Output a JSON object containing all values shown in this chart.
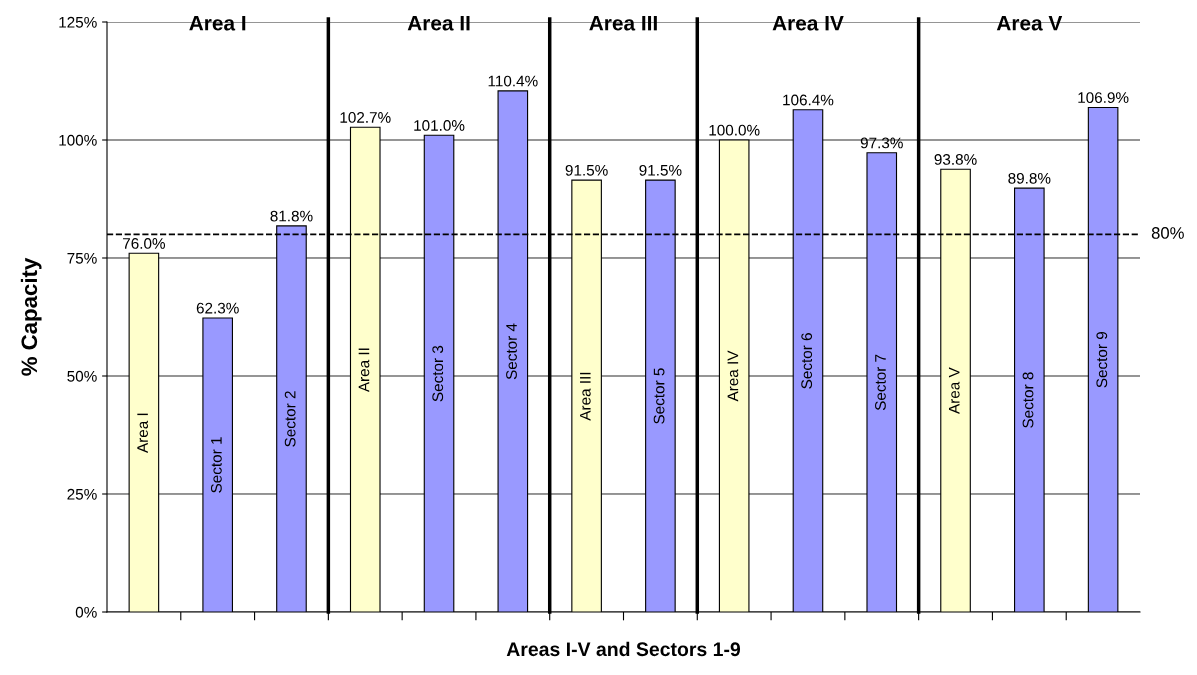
{
  "chart_data": {
    "type": "bar",
    "xlabel": "Areas I-V and Sectors 1-9",
    "ylabel": "% Capacity",
    "categories": [
      "Area I",
      "Sector 1",
      "Sector 2",
      "Area II",
      "Sector 3",
      "Sector 4",
      "Area III",
      "Sector 5",
      "Area IV",
      "Sector 6",
      "Sector 7",
      "Area V",
      "Sector 8",
      "Sector 9"
    ],
    "values": [
      76.0,
      62.3,
      81.8,
      102.7,
      101.0,
      110.4,
      91.5,
      91.5,
      100.0,
      106.4,
      97.3,
      93.8,
      89.8,
      106.9
    ],
    "colors": [
      "#ffffcc",
      "#9999ff",
      "#9999ff",
      "#ffffcc",
      "#9999ff",
      "#9999ff",
      "#ffffcc",
      "#9999ff",
      "#ffffcc",
      "#9999ff",
      "#9999ff",
      "#ffffcc",
      "#9999ff",
      "#9999ff"
    ],
    "value_labels": [
      "76.0%",
      "62.3%",
      "81.8%",
      "102.7%",
      "101.0%",
      "110.4%",
      "91.5%",
      "91.5%",
      "100.0%",
      "106.4%",
      "97.3%",
      "93.8%",
      "89.8%",
      "106.9%"
    ],
    "ylim": [
      0,
      125
    ],
    "yticks": [
      {
        "value": 0,
        "label": "0%"
      },
      {
        "value": 25,
        "label": "25%"
      },
      {
        "value": 50,
        "label": "50%"
      },
      {
        "value": 75,
        "label": "75%"
      },
      {
        "value": 100,
        "label": "100%"
      },
      {
        "value": 125,
        "label": "125%"
      }
    ],
    "grid": "y",
    "legend": false,
    "ref_lines": [
      {
        "axis": "y",
        "value": 80,
        "label": "80%",
        "line_style": "dashed",
        "color": "#000000"
      }
    ],
    "annotations": [
      "Area I",
      "Area II",
      "Area III",
      "Area IV",
      "Area V"
    ]
  }
}
